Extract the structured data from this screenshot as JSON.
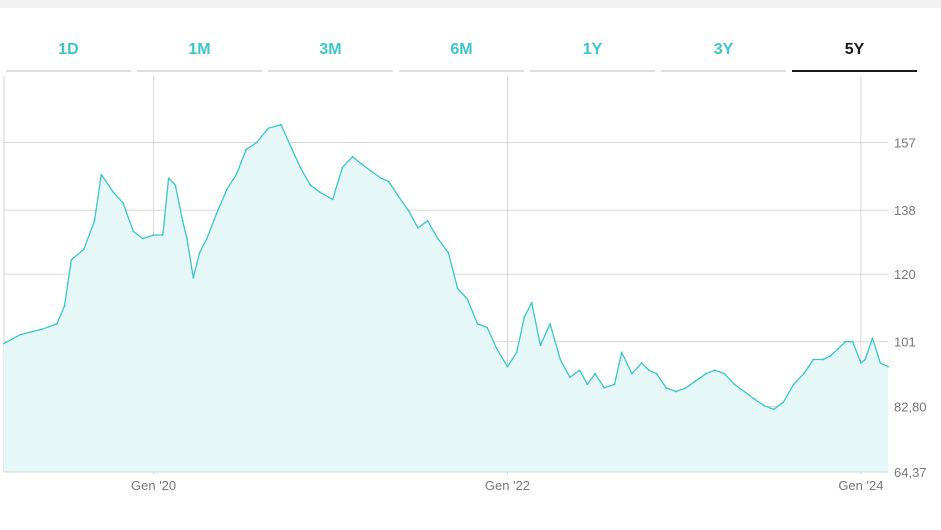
{
  "tabs": [
    {
      "label": "1D",
      "active": false
    },
    {
      "label": "1M",
      "active": false
    },
    {
      "label": "3M",
      "active": false
    },
    {
      "label": "6M",
      "active": false
    },
    {
      "label": "1Y",
      "active": false
    },
    {
      "label": "3Y",
      "active": false
    },
    {
      "label": "5Y",
      "active": true
    }
  ],
  "colors": {
    "accent": "#3cc6c6",
    "area_fill": "#e6f7f7",
    "grid": "#d6d6d6",
    "axis_text": "#777777",
    "active_tab": "#1a1a1a"
  },
  "chart_data": {
    "type": "area",
    "title": "",
    "xlabel": "",
    "ylabel": "",
    "grid": true,
    "y_axis_position": "right",
    "ylim": [
      64.37,
      175.7
    ],
    "xlim": [
      "2019-02-26",
      "2024-02-26"
    ],
    "y_ticks": [
      {
        "value": 64.37,
        "label": "64,37"
      },
      {
        "value": 82.8,
        "label": "82,80"
      },
      {
        "value": 101,
        "label": "101"
      },
      {
        "value": 120,
        "label": "120"
      },
      {
        "value": 138,
        "label": "138"
      },
      {
        "value": 157,
        "label": "157"
      }
    ],
    "x_ticks": [
      {
        "value": "2020-01-01",
        "label": "Gen '20"
      },
      {
        "value": "2022-01-01",
        "label": "Gen '22"
      },
      {
        "value": "2024-01-01",
        "label": "Gen '24"
      }
    ],
    "series": [
      {
        "x": [
          "2019-02-26",
          "2019-04-01",
          "2019-05-15",
          "2019-06-15",
          "2019-07-01",
          "2019-07-15",
          "2019-08-10",
          "2019-09-01",
          "2019-09-15",
          "2019-10-10",
          "2019-10-30",
          "2019-11-20",
          "2019-12-10",
          "2020-01-01",
          "2020-01-20",
          "2020-02-01",
          "2020-02-15",
          "2020-03-01",
          "2020-03-10",
          "2020-03-23",
          "2020-04-05",
          "2020-04-20",
          "2020-05-10",
          "2020-06-01",
          "2020-06-20",
          "2020-07-10",
          "2020-08-01",
          "2020-08-25",
          "2020-09-20",
          "2020-10-10",
          "2020-10-30",
          "2020-11-20",
          "2020-12-10",
          "2021-01-05",
          "2021-01-25",
          "2021-02-15",
          "2021-03-05",
          "2021-03-25",
          "2021-04-15",
          "2021-05-01",
          "2021-05-20",
          "2021-06-10",
          "2021-06-30",
          "2021-07-20",
          "2021-08-10",
          "2021-09-01",
          "2021-09-20",
          "2021-10-10",
          "2021-10-31",
          "2021-11-20",
          "2021-12-10",
          "2022-01-01",
          "2022-01-20",
          "2022-02-05",
          "2022-02-20",
          "2022-03-10",
          "2022-03-30",
          "2022-04-20",
          "2022-05-10",
          "2022-05-30",
          "2022-06-15",
          "2022-07-01",
          "2022-07-20",
          "2022-08-10",
          "2022-08-25",
          "2022-09-15",
          "2022-10-05",
          "2022-10-20",
          "2022-11-05",
          "2022-11-25",
          "2022-12-15",
          "2023-01-05",
          "2023-01-25",
          "2023-02-15",
          "2023-03-05",
          "2023-03-25",
          "2023-04-15",
          "2023-05-05",
          "2023-05-25",
          "2023-06-15",
          "2023-07-05",
          "2023-07-25",
          "2023-08-15",
          "2023-09-05",
          "2023-09-25",
          "2023-10-15",
          "2023-10-30",
          "2023-11-15",
          "2023-11-30",
          "2023-12-15",
          "2024-01-01",
          "2024-01-10",
          "2024-01-25",
          "2024-02-10",
          "2024-02-26"
        ],
        "values": [
          100.5,
          103,
          104.5,
          106,
          111,
          124,
          127,
          135,
          148,
          143,
          140,
          132,
          130,
          131,
          131,
          147,
          145,
          135,
          130,
          119,
          126,
          130,
          137,
          144,
          148,
          155,
          157,
          161,
          162,
          156,
          150,
          145,
          143,
          141,
          150,
          153,
          151,
          149,
          147,
          146,
          142,
          138,
          133,
          135,
          130,
          126,
          116,
          113,
          106,
          105,
          99,
          94,
          98,
          108,
          112,
          100,
          106,
          96,
          91,
          93,
          89,
          92,
          88,
          89,
          98,
          92,
          95,
          93,
          92,
          88,
          87,
          88,
          90,
          92,
          93,
          92,
          89,
          87,
          85,
          83,
          82,
          84,
          89,
          92,
          96,
          96,
          97,
          99,
          101,
          101,
          95,
          96,
          102,
          95,
          94
        ],
        "_note": "values read from gridlines"
      }
    ]
  }
}
